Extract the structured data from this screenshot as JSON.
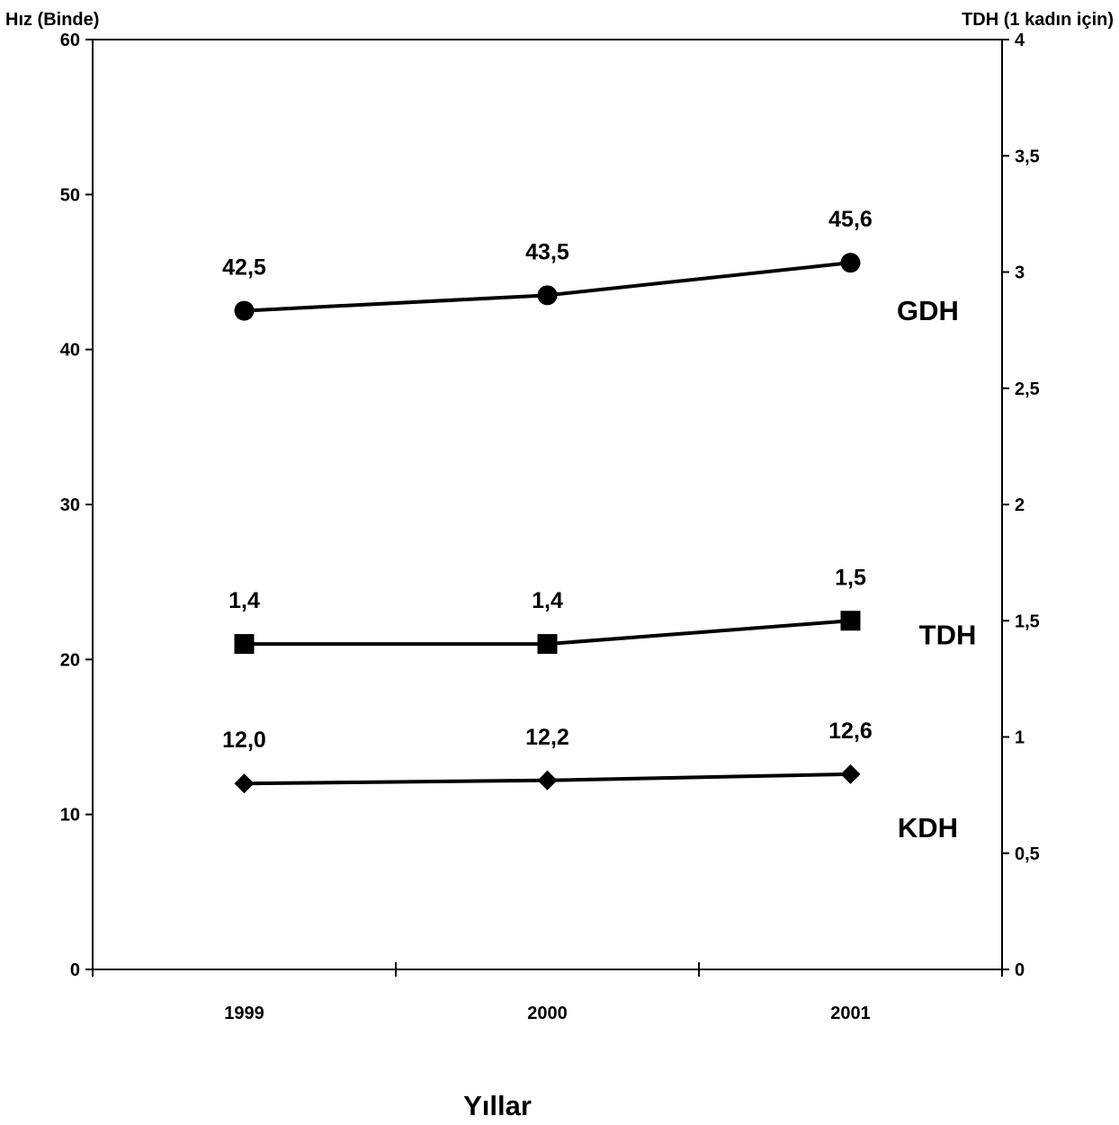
{
  "chart_data": {
    "type": "line",
    "categories": [
      "1999",
      "2000",
      "2001"
    ],
    "xlabel": "Yıllar",
    "ylabel_left": "Hız (Binde)",
    "ylabel_right": "TDH (1 kadın için)",
    "ylim_left": [
      0,
      60
    ],
    "ylim_right": [
      0,
      4
    ],
    "yticks_left": [
      "0",
      "10",
      "20",
      "30",
      "40",
      "50",
      "60"
    ],
    "yticks_right": [
      "0",
      "0,5",
      "1",
      "1,5",
      "2",
      "2,5",
      "3",
      "3,5",
      "4"
    ],
    "grid": false,
    "legend": "none",
    "series": [
      {
        "name": "GDH",
        "axis": "left",
        "marker": "circle",
        "values": [
          42.5,
          43.5,
          45.6
        ],
        "labels": [
          "42,5",
          "43,5",
          "45,6"
        ]
      },
      {
        "name": "TDH",
        "axis": "right",
        "marker": "square",
        "values": [
          1.4,
          1.4,
          1.5
        ],
        "labels": [
          "1,4",
          "1,4",
          "1,5"
        ]
      },
      {
        "name": "KDH",
        "axis": "left",
        "marker": "diamond",
        "values": [
          12.0,
          12.2,
          12.6
        ],
        "labels": [
          "12,0",
          "12,2",
          "12,6"
        ]
      }
    ],
    "colors": {
      "line": "#000000",
      "background": "#ffffff"
    }
  }
}
